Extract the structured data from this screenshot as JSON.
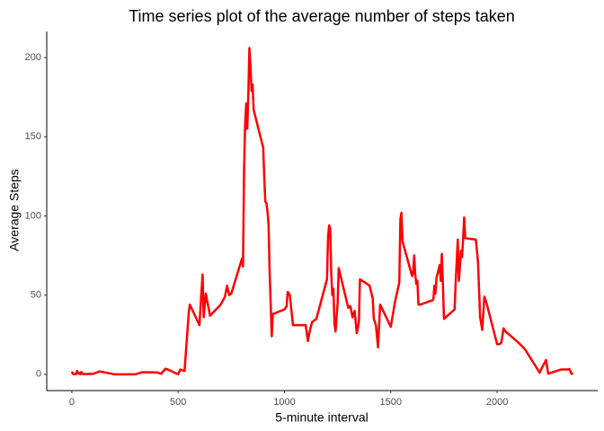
{
  "chart_data": {
    "type": "line",
    "title": "Time series plot of the average number of steps taken",
    "xlabel": "5-minute interval",
    "ylabel": "Average Steps",
    "color": "#ff0000",
    "xlim": [
      -118,
      2473
    ],
    "ylim": [
      -10.3,
      216.5
    ],
    "xticks": [
      0,
      500,
      1000,
      1500,
      2000
    ],
    "yticks": [
      0,
      50,
      100,
      150,
      200
    ],
    "x": [
      0,
      5,
      10,
      15,
      20,
      25,
      30,
      35,
      40,
      45,
      50,
      55,
      100,
      130,
      200,
      230,
      300,
      330,
      400,
      420,
      440,
      450,
      500,
      510,
      530,
      550,
      555,
      600,
      610,
      615,
      620,
      630,
      650,
      700,
      720,
      730,
      740,
      750,
      800,
      805,
      810,
      815,
      820,
      825,
      830,
      835,
      840,
      845,
      850,
      855,
      900,
      905,
      910,
      915,
      920,
      925,
      930,
      935,
      940,
      945,
      1000,
      1010,
      1015,
      1025,
      1030,
      1040,
      1100,
      1110,
      1120,
      1130,
      1150,
      1200,
      1205,
      1210,
      1215,
      1220,
      1225,
      1230,
      1235,
      1240,
      1250,
      1255,
      1300,
      1310,
      1320,
      1330,
      1340,
      1350,
      1355,
      1400,
      1415,
      1420,
      1430,
      1440,
      1450,
      1500,
      1520,
      1540,
      1545,
      1550,
      1555,
      1600,
      1605,
      1610,
      1615,
      1620,
      1625,
      1630,
      1640,
      1700,
      1705,
      1710,
      1715,
      1730,
      1735,
      1740,
      1745,
      1750,
      1800,
      1805,
      1815,
      1820,
      1825,
      1830,
      1835,
      1840,
      1845,
      1850,
      1900,
      1910,
      1920,
      1930,
      1940,
      1950,
      2000,
      2010,
      2020,
      2030,
      2040,
      2100,
      2130,
      2200,
      2210,
      2230,
      2240,
      2300,
      2330,
      2340,
      2350,
      2355
    ],
    "values": [
      1.7,
      0.3,
      0.1,
      0.2,
      0.1,
      2.1,
      0.5,
      0.9,
      0,
      1.5,
      0.3,
      0.1,
      0.3,
      1.8,
      0,
      0,
      0,
      1.3,
      1.2,
      0.3,
      3.5,
      3.1,
      0,
      3,
      2.1,
      39,
      44,
      31,
      53,
      63,
      36,
      51,
      37,
      44,
      49,
      56,
      50,
      51,
      73,
      68,
      129,
      158,
      171,
      155,
      177,
      206,
      195,
      179,
      183,
      167,
      143,
      124,
      109,
      108,
      103,
      95,
      66,
      45,
      24,
      38,
      41,
      43,
      52,
      50,
      44,
      31,
      31,
      21,
      28,
      33,
      35,
      60,
      87,
      94,
      92,
      63,
      50,
      54,
      32,
      27,
      45,
      67,
      42,
      43,
      36,
      40,
      26,
      33,
      60,
      56,
      48,
      35,
      31,
      17,
      44,
      30,
      46,
      58,
      98,
      102,
      84,
      62,
      64,
      75,
      63,
      57,
      59,
      44,
      44,
      47,
      56,
      51,
      61,
      69,
      59,
      76,
      57,
      35,
      41,
      58,
      85,
      59,
      68,
      78,
      74,
      85,
      99,
      86,
      85,
      71,
      36,
      28,
      49,
      45,
      19,
      19,
      20,
      29,
      27,
      20,
      16,
      1,
      4,
      9,
      0.4,
      3,
      3,
      3.3,
      0.2,
      1.1
    ]
  }
}
